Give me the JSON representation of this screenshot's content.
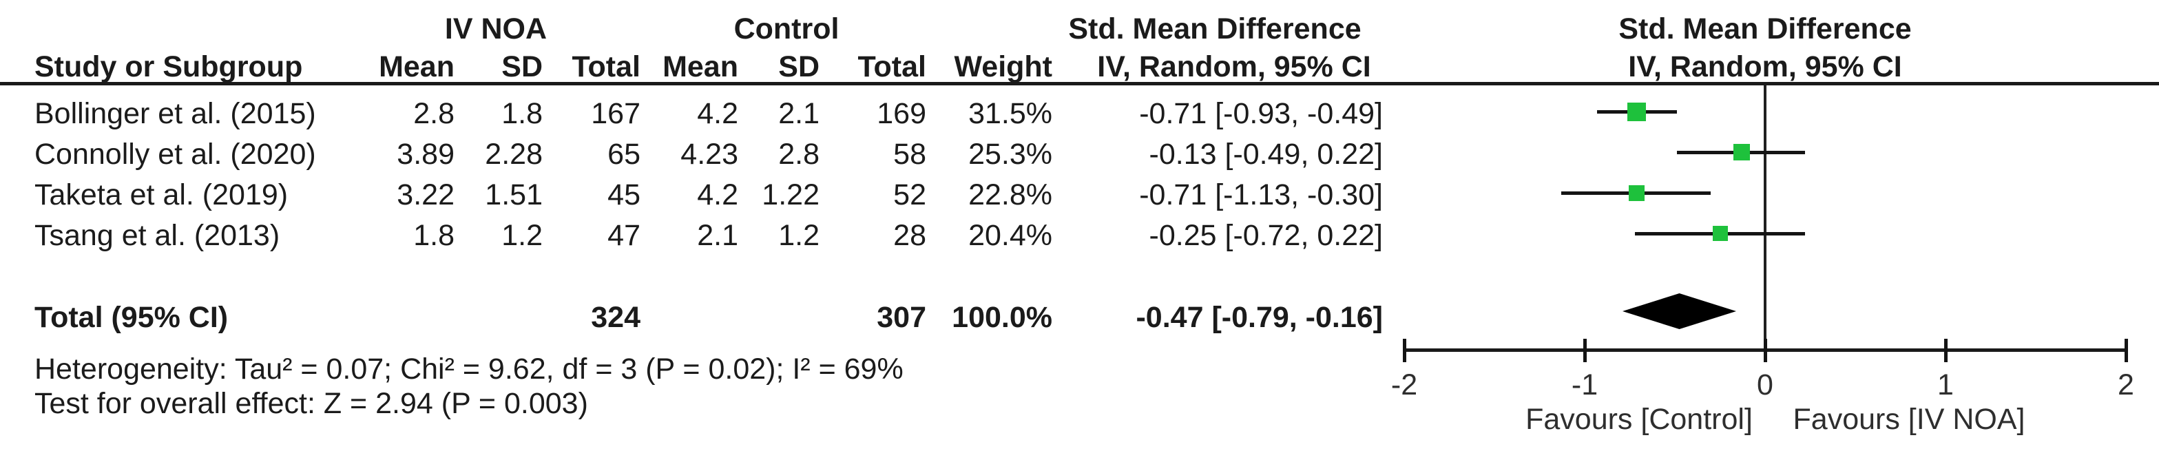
{
  "title": "Forest plot — Std. Mean Difference (IV NOA vs Control)",
  "colors": {
    "square_green": "#1ec13c",
    "text_black": "#1b1b1b",
    "line_black": "#141414",
    "diamond_black": "#000000"
  },
  "header": {
    "group_experimental": "IV NOA",
    "group_control": "Control",
    "smd_col_line1": "Std. Mean Difference",
    "smd_col_line2": "IV, Random, 95% CI",
    "smd_plot_line1": "Std. Mean Difference",
    "smd_plot_line2": "IV, Random, 95% CI",
    "col_study": "Study or Subgroup",
    "col_mean1": "Mean",
    "col_sd1": "SD",
    "col_total1": "Total",
    "col_mean2": "Mean",
    "col_sd2": "SD",
    "col_total2": "Total",
    "col_weight": "Weight"
  },
  "rows": [
    {
      "study": "Bollinger et al. (2015)",
      "mean1": "2.8",
      "sd1": "1.8",
      "total1": "167",
      "mean2": "4.2",
      "sd2": "2.1",
      "total2": "169",
      "weight": "31.5%",
      "ci": "-0.71 [-0.93, -0.49]"
    },
    {
      "study": "Connolly et al. (2020)",
      "mean1": "3.89",
      "sd1": "2.28",
      "total1": "65",
      "mean2": "4.23",
      "sd2": "2.8",
      "total2": "58",
      "weight": "25.3%",
      "ci": "-0.13 [-0.49, 0.22]"
    },
    {
      "study": "Taketa et al. (2019)",
      "mean1": "3.22",
      "sd1": "1.51",
      "total1": "45",
      "mean2": "4.2",
      "sd2": "1.22",
      "total2": "52",
      "weight": "22.8%",
      "ci": "-0.71 [-1.13, -0.30]"
    },
    {
      "study": "Tsang et al. (2013)",
      "mean1": "1.8",
      "sd1": "1.2",
      "total1": "47",
      "mean2": "2.1",
      "sd2": "1.2",
      "total2": "28",
      "weight": "20.4%",
      "ci": "-0.25 [-0.72, 0.22]"
    }
  ],
  "total_row": {
    "label": "Total (95% CI)",
    "total1": "324",
    "total2": "307",
    "weight": "100.0%",
    "ci": "-0.47 [-0.79, -0.16]"
  },
  "footer": {
    "heterogeneity": "Heterogeneity: Tau² = 0.07; Chi² = 9.62, df = 3 (P = 0.02); I² = 69%",
    "overall_effect": "Test for overall effect: Z = 2.94 (P = 0.003)"
  },
  "axis": {
    "tick_labels": [
      "-2",
      "-1",
      "0",
      "1",
      "2"
    ],
    "favours_left": "Favours [Control]",
    "favours_right": "Favours [IV NOA]"
  },
  "chart_data": {
    "type": "forest",
    "effect_measure": "Std. Mean Difference",
    "model": "IV, Random, 95% CI",
    "studies": [
      {
        "name": "Bollinger et al. (2015)",
        "estimate": -0.71,
        "ci_low": -0.93,
        "ci_high": -0.49,
        "weight_pct": 31.5
      },
      {
        "name": "Connolly et al. (2020)",
        "estimate": -0.13,
        "ci_low": -0.49,
        "ci_high": 0.22,
        "weight_pct": 25.3
      },
      {
        "name": "Taketa et al. (2019)",
        "estimate": -0.71,
        "ci_low": -1.13,
        "ci_high": -0.3,
        "weight_pct": 22.8
      },
      {
        "name": "Tsang et al. (2013)",
        "estimate": -0.25,
        "ci_low": -0.72,
        "ci_high": 0.22,
        "weight_pct": 20.4
      }
    ],
    "overall": {
      "label": "Total (95% CI)",
      "estimate": -0.47,
      "ci_low": -0.79,
      "ci_high": -0.16,
      "total1": 324,
      "total2": 307,
      "weight_pct": 100.0
    },
    "heterogeneity": {
      "tau2": 0.07,
      "chi2": 9.62,
      "df": 3,
      "p": 0.02,
      "i2_pct": 69
    },
    "overall_effect_test": {
      "z": 2.94,
      "p": 0.003
    },
    "xlim": [
      -2,
      2
    ],
    "x_ticks": [
      -2,
      -1,
      0,
      1,
      2
    ],
    "zero_line": 0,
    "grid": false,
    "legend_position": "none"
  }
}
